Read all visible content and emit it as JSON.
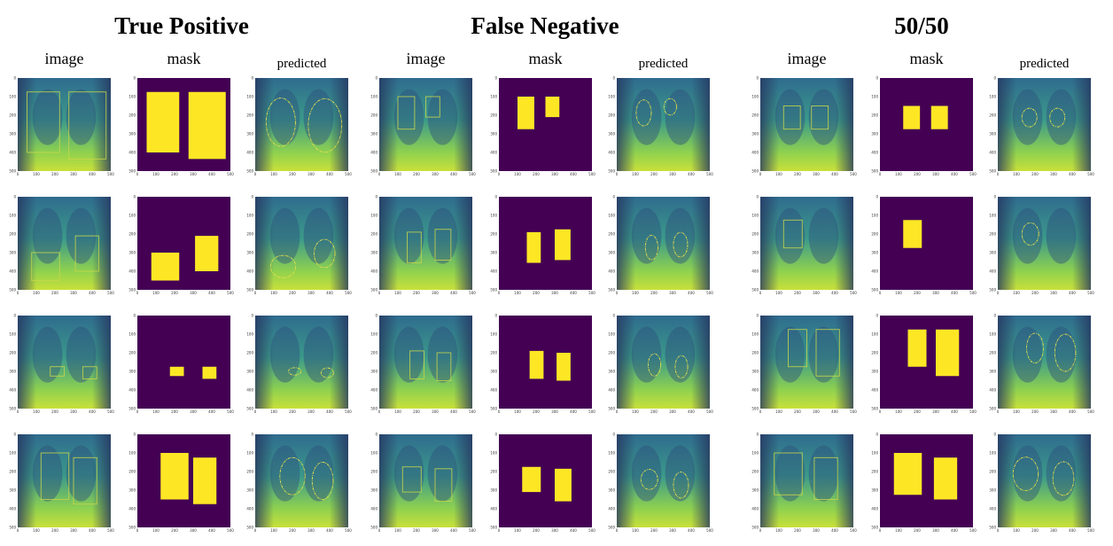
{
  "groups": [
    {
      "title": "True Positive",
      "columns": [
        "image",
        "mask",
        "predicted"
      ]
    },
    {
      "title": "False Negative",
      "columns": [
        "image",
        "mask",
        "predicted"
      ]
    },
    {
      "title": "50/50",
      "columns": [
        "image",
        "mask",
        "predicted"
      ]
    }
  ],
  "axis_ticks": [
    "0",
    "100",
    "200",
    "300",
    "400",
    "500"
  ]
}
